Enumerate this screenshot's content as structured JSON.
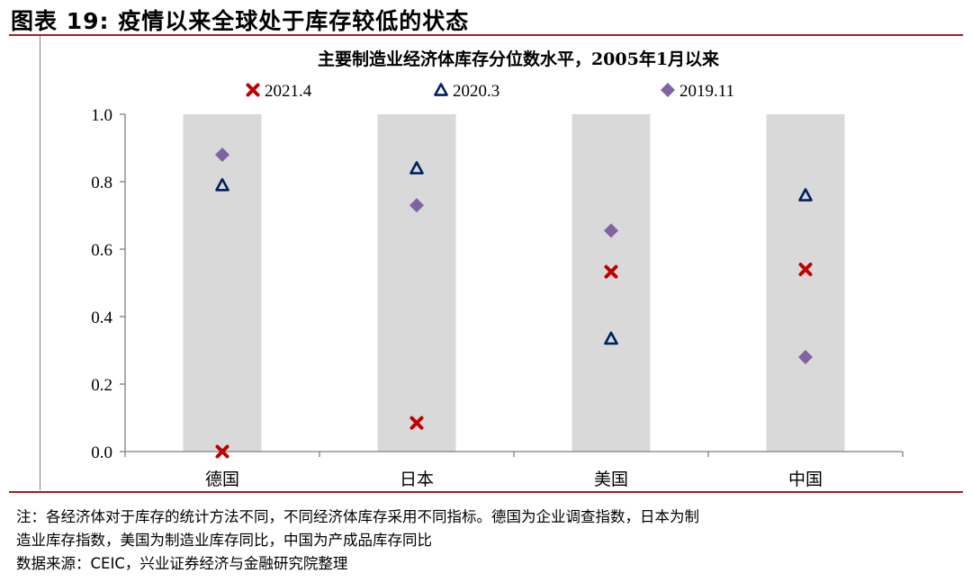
{
  "figure": {
    "title": "图表 19:  疫情以来全球处于库存较低的状态"
  },
  "notes": {
    "line1": "注：各经济体对于库存的统计方法不同，不同经济体库存采用不同指标。德国为企业调查指数，日本为制",
    "line2": "造业库存指数，美国为制造业库存同比，中国为产成品库存同比",
    "source": "数据来源：CEIC，兴业证券经济与金融研究院整理"
  },
  "colors": {
    "band": "#d9d9d9",
    "axis": "#7f7f7f",
    "rule": "#a31f24"
  },
  "chart_data": {
    "type": "scatter",
    "title": "主要制造业经济体库存分位数水平，2005年1月以来",
    "categories": [
      "德国",
      "日本",
      "美国",
      "中国"
    ],
    "ylim": [
      0,
      1.0
    ],
    "yticks": [
      "0.0",
      "0.2",
      "0.4",
      "0.6",
      "0.8",
      "1.0"
    ],
    "legend_position": "top",
    "band_max": 1.0,
    "series": [
      {
        "name": "2021.4",
        "marker": "x",
        "color": "#c00000",
        "values": [
          0.0,
          0.085,
          0.533,
          0.54
        ]
      },
      {
        "name": "2020.3",
        "marker": "triangle",
        "color": "#002060",
        "values": [
          0.79,
          0.84,
          0.335,
          0.76
        ]
      },
      {
        "name": "2019.11",
        "marker": "diamond",
        "color": "#8064a2",
        "values": [
          0.88,
          0.73,
          0.655,
          0.28
        ]
      }
    ]
  }
}
